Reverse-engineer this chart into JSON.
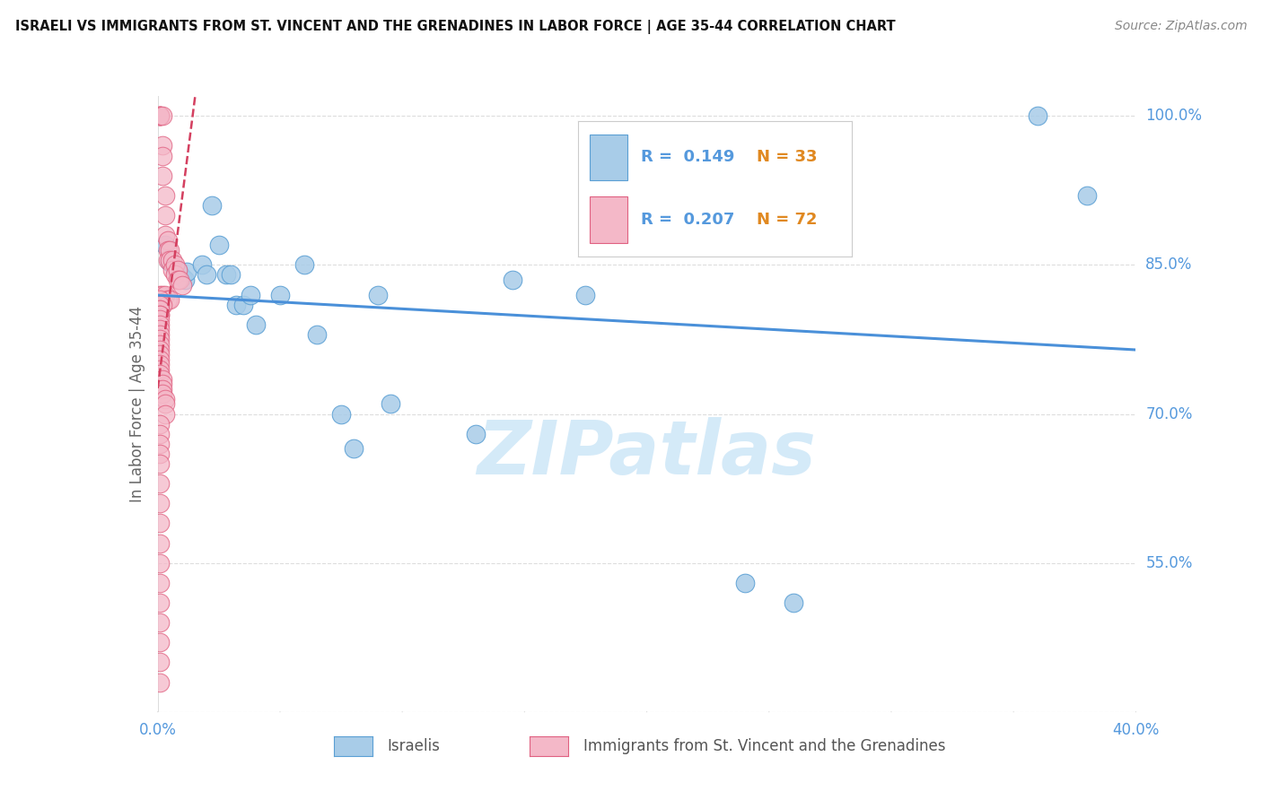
{
  "title": "ISRAELI VS IMMIGRANTS FROM ST. VINCENT AND THE GRENADINES IN LABOR FORCE | AGE 35-44 CORRELATION CHART",
  "source": "Source: ZipAtlas.com",
  "ylabel": "In Labor Force | Age 35-44",
  "xlim": [
    0.0,
    0.4
  ],
  "ylim": [
    0.4,
    1.02
  ],
  "yticks": [
    0.55,
    0.7,
    0.85,
    1.0
  ],
  "ytick_labels": [
    "55.0%",
    "70.0%",
    "85.0%",
    "100.0%"
  ],
  "xtick_left_label": "0.0%",
  "xtick_right_label": "40.0%",
  "blue_color": "#a8cce8",
  "blue_edge_color": "#5a9fd4",
  "pink_color": "#f4b8c8",
  "pink_edge_color": "#e06080",
  "trend_blue_color": "#4a90d9",
  "trend_pink_color": "#d44060",
  "axis_label_color": "#5599dd",
  "tick_color": "#5599dd",
  "grid_color": "#dddddd",
  "watermark_color": "#d0e8f8",
  "watermark": "ZIPatlas",
  "legend_r_blue": "0.149",
  "legend_n_blue": "33",
  "legend_r_pink": "0.207",
  "legend_n_pink": "72",
  "blue_x": [
    0.003,
    0.005,
    0.007,
    0.008,
    0.009,
    0.01,
    0.011,
    0.012,
    0.018,
    0.02,
    0.022,
    0.025,
    0.028,
    0.03,
    0.032,
    0.035,
    0.038,
    0.04,
    0.05,
    0.06,
    0.065,
    0.075,
    0.08,
    0.09,
    0.095,
    0.13,
    0.145,
    0.175,
    0.23,
    0.24,
    0.26,
    0.36,
    0.38
  ],
  "blue_y": [
    0.87,
    0.853,
    0.847,
    0.845,
    0.84,
    0.838,
    0.835,
    0.843,
    0.85,
    0.84,
    0.91,
    0.87,
    0.84,
    0.84,
    0.81,
    0.81,
    0.82,
    0.79,
    0.82,
    0.85,
    0.78,
    0.7,
    0.665,
    0.82,
    0.71,
    0.68,
    0.835,
    0.82,
    0.87,
    0.53,
    0.51,
    1.0,
    0.92
  ],
  "pink_x": [
    0.001,
    0.001,
    0.001,
    0.001,
    0.002,
    0.002,
    0.002,
    0.002,
    0.003,
    0.003,
    0.003,
    0.004,
    0.004,
    0.004,
    0.005,
    0.005,
    0.006,
    0.006,
    0.007,
    0.007,
    0.008,
    0.008,
    0.009,
    0.01,
    0.001,
    0.002,
    0.003,
    0.004,
    0.005,
    0.001,
    0.001,
    0.002,
    0.001,
    0.001,
    0.001,
    0.001,
    0.001,
    0.001,
    0.001,
    0.001,
    0.001,
    0.001,
    0.001,
    0.001,
    0.001,
    0.001,
    0.001,
    0.001,
    0.001,
    0.002,
    0.002,
    0.002,
    0.002,
    0.003,
    0.003,
    0.003,
    0.001,
    0.001,
    0.001,
    0.001,
    0.001,
    0.001,
    0.001,
    0.001,
    0.001,
    0.001,
    0.001,
    0.001,
    0.001,
    0.001,
    0.001,
    0.001
  ],
  "pink_y": [
    1.0,
    1.0,
    1.0,
    1.0,
    1.0,
    0.97,
    0.96,
    0.94,
    0.92,
    0.9,
    0.88,
    0.875,
    0.865,
    0.855,
    0.865,
    0.855,
    0.855,
    0.845,
    0.85,
    0.84,
    0.845,
    0.835,
    0.835,
    0.83,
    0.82,
    0.82,
    0.82,
    0.815,
    0.815,
    0.815,
    0.81,
    0.81,
    0.81,
    0.805,
    0.805,
    0.8,
    0.8,
    0.795,
    0.79,
    0.785,
    0.78,
    0.775,
    0.77,
    0.765,
    0.76,
    0.755,
    0.75,
    0.745,
    0.74,
    0.735,
    0.73,
    0.725,
    0.72,
    0.715,
    0.71,
    0.7,
    0.69,
    0.68,
    0.67,
    0.66,
    0.65,
    0.63,
    0.61,
    0.59,
    0.57,
    0.55,
    0.53,
    0.51,
    0.49,
    0.47,
    0.45,
    0.43
  ]
}
